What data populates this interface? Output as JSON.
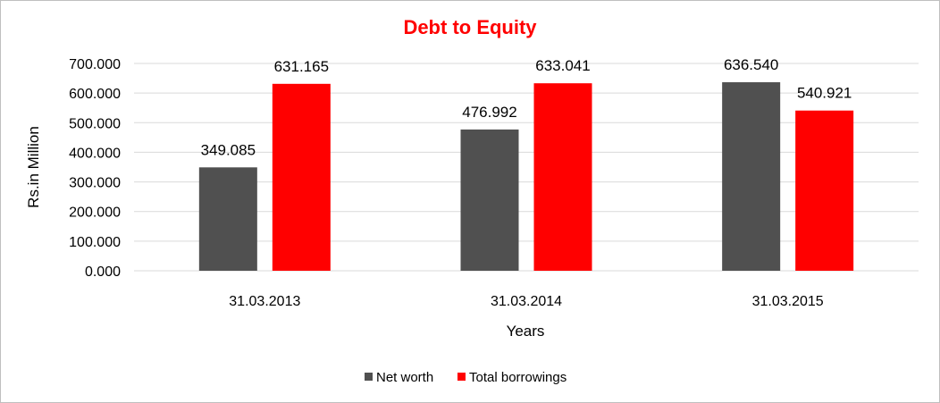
{
  "colors": {
    "title": "#ff0000",
    "net_worth": "#505050",
    "total_borrowings": "#ff0000",
    "gridline": "#d9d9d9",
    "frame": "#bfbfbf"
  },
  "chart_data": {
    "type": "bar",
    "title": "Debt to Equity",
    "xlabel": "Years",
    "ylabel": "Rs.in Million",
    "categories": [
      "31.03.2013",
      "31.03.2014",
      "31.03.2015"
    ],
    "series": [
      {
        "name": "Net worth",
        "values": [
          349.085,
          476.992,
          636.54
        ],
        "labels": [
          "349.085",
          "476.992",
          "636.540"
        ]
      },
      {
        "name": "Total borrowings",
        "values": [
          631.165,
          633.041,
          540.921
        ],
        "labels": [
          "631.165",
          "633.041",
          "540.921"
        ]
      }
    ],
    "ylim": [
      0,
      700
    ],
    "yticks": [
      0,
      100,
      200,
      300,
      400,
      500,
      600,
      700
    ],
    "ytick_labels": [
      "0.000",
      "100.000",
      "200.000",
      "300.000",
      "400.000",
      "500.000",
      "600.000",
      "700.000"
    ],
    "grid": true,
    "legend_position": "bottom"
  }
}
